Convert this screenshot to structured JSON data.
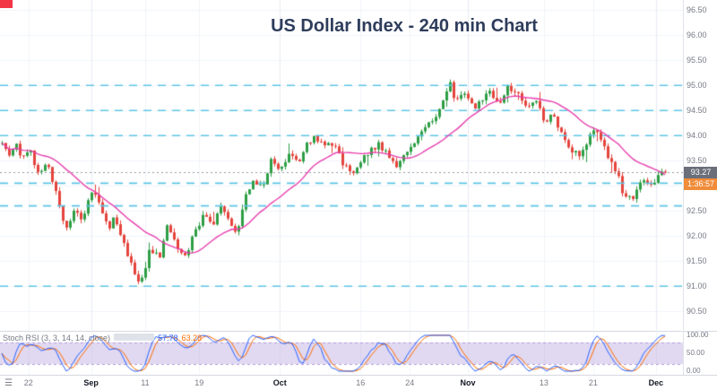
{
  "window": {
    "title": "US Dollar Index - 240 min Chart"
  },
  "price_scale": {
    "labels": [
      "96.50",
      "96.00",
      "95.50",
      "95.00",
      "94.50",
      "94.00",
      "93.50",
      "93.00",
      "92.50",
      "92.00",
      "91.50",
      "91.00",
      "90.50"
    ],
    "price_badge": {
      "text": "93.27",
      "color": "#6a6f7a"
    },
    "countdown_badge": {
      "text": "1:36:57",
      "color": "#f08c3a"
    }
  },
  "time_axis": {
    "menu_icon": "☰",
    "labels": [
      {
        "text": "22",
        "x": 0.04,
        "type": "day"
      },
      {
        "text": "Sep",
        "x": 0.134,
        "type": "month"
      },
      {
        "text": "11",
        "x": 0.215,
        "type": "day"
      },
      {
        "text": "19",
        "x": 0.296,
        "type": "day"
      },
      {
        "text": "Oct",
        "x": 0.417,
        "type": "month"
      },
      {
        "text": "16",
        "x": 0.538,
        "type": "day"
      },
      {
        "text": "24",
        "x": 0.612,
        "type": "day"
      },
      {
        "text": "Nov",
        "x": 0.699,
        "type": "month"
      },
      {
        "text": "13",
        "x": 0.813,
        "type": "day"
      },
      {
        "text": "21",
        "x": 0.887,
        "type": "day"
      },
      {
        "text": "Dec",
        "x": 0.981,
        "type": "month"
      }
    ]
  },
  "indicator": {
    "label": "Stoch RSI (3, 3, 14, 14, close)",
    "k_value": "57.78",
    "d_value": "63.28",
    "k_color": "#2962ff",
    "d_color": "#ff6d00",
    "icons": [
      "eye-icon",
      "gear-icon",
      "source-icon",
      "close-icon",
      "more-icon"
    ],
    "scale_labels": [
      "100.00",
      "50.00",
      "0.00"
    ],
    "band_color": "#b39ddb"
  },
  "chart_data": {
    "type": "candlestick",
    "title": "US Dollar Index - 240 min Chart",
    "interval": "240 min",
    "y_axis": {
      "min": 90.3,
      "max": 96.7,
      "tick": 0.5
    },
    "last_price": 93.27,
    "up_color": "#2e9e45",
    "down_color": "#e4443c",
    "grid": true,
    "sr_line_color": "#5ec5e6",
    "sr_lines": [
      95.0,
      94.5,
      94.0,
      93.05,
      92.6,
      91.0
    ],
    "ma": {
      "period": 20,
      "color": "#e83eae"
    },
    "stoch": {
      "rsi_period": 14,
      "stoch_period": 14,
      "k_smooth": 3,
      "d_smooth": 3
    },
    "candles": {
      "count": 186,
      "seed": 11,
      "body_noise": 0.07,
      "wick_noise": 0.08,
      "wick_spike_chance": 0.06,
      "wick_spike": 0.2
    },
    "price_path": [
      {
        "x": 0.0,
        "p": 93.85
      },
      {
        "x": 0.011,
        "p": 93.6
      },
      {
        "x": 0.02,
        "p": 93.9
      },
      {
        "x": 0.027,
        "p": 93.55
      },
      {
        "x": 0.04,
        "p": 93.75
      },
      {
        "x": 0.054,
        "p": 93.3
      },
      {
        "x": 0.067,
        "p": 93.45
      },
      {
        "x": 0.081,
        "p": 92.9
      },
      {
        "x": 0.094,
        "p": 92.15
      },
      {
        "x": 0.108,
        "p": 92.5
      },
      {
        "x": 0.121,
        "p": 92.35
      },
      {
        "x": 0.134,
        "p": 92.9
      },
      {
        "x": 0.148,
        "p": 92.6
      },
      {
        "x": 0.159,
        "p": 92.15
      },
      {
        "x": 0.168,
        "p": 92.4
      },
      {
        "x": 0.181,
        "p": 91.9
      },
      {
        "x": 0.195,
        "p": 91.4
      },
      {
        "x": 0.208,
        "p": 91.05
      },
      {
        "x": 0.222,
        "p": 91.75
      },
      {
        "x": 0.235,
        "p": 91.55
      },
      {
        "x": 0.249,
        "p": 92.25
      },
      {
        "x": 0.262,
        "p": 91.8
      },
      {
        "x": 0.276,
        "p": 91.55
      },
      {
        "x": 0.289,
        "p": 92.1
      },
      {
        "x": 0.302,
        "p": 92.4
      },
      {
        "x": 0.316,
        "p": 92.25
      },
      {
        "x": 0.329,
        "p": 92.6
      },
      {
        "x": 0.343,
        "p": 92.25
      },
      {
        "x": 0.352,
        "p": 92.1
      },
      {
        "x": 0.363,
        "p": 92.7
      },
      {
        "x": 0.376,
        "p": 93.15
      },
      {
        "x": 0.39,
        "p": 93.0
      },
      {
        "x": 0.403,
        "p": 93.5
      },
      {
        "x": 0.417,
        "p": 93.3
      },
      {
        "x": 0.43,
        "p": 93.65
      },
      {
        "x": 0.444,
        "p": 93.5
      },
      {
        "x": 0.457,
        "p": 93.8
      },
      {
        "x": 0.47,
        "p": 94.0
      },
      {
        "x": 0.484,
        "p": 93.75
      },
      {
        "x": 0.497,
        "p": 93.85
      },
      {
        "x": 0.511,
        "p": 93.4
      },
      {
        "x": 0.524,
        "p": 93.25
      },
      {
        "x": 0.538,
        "p": 93.5
      },
      {
        "x": 0.551,
        "p": 93.7
      },
      {
        "x": 0.565,
        "p": 93.85
      },
      {
        "x": 0.578,
        "p": 93.6
      },
      {
        "x": 0.591,
        "p": 93.35
      },
      {
        "x": 0.605,
        "p": 93.7
      },
      {
        "x": 0.618,
        "p": 93.85
      },
      {
        "x": 0.632,
        "p": 94.15
      },
      {
        "x": 0.645,
        "p": 94.3
      },
      {
        "x": 0.659,
        "p": 94.65
      },
      {
        "x": 0.672,
        "p": 95.0
      },
      {
        "x": 0.679,
        "p": 94.75
      },
      {
        "x": 0.692,
        "p": 94.9
      },
      {
        "x": 0.706,
        "p": 94.55
      },
      {
        "x": 0.719,
        "p": 94.7
      },
      {
        "x": 0.733,
        "p": 94.85
      },
      {
        "x": 0.746,
        "p": 94.6
      },
      {
        "x": 0.759,
        "p": 94.95
      },
      {
        "x": 0.773,
        "p": 94.9
      },
      {
        "x": 0.786,
        "p": 94.6
      },
      {
        "x": 0.8,
        "p": 94.75
      },
      {
        "x": 0.813,
        "p": 94.3
      },
      {
        "x": 0.827,
        "p": 94.45
      },
      {
        "x": 0.84,
        "p": 93.95
      },
      {
        "x": 0.853,
        "p": 93.75
      },
      {
        "x": 0.867,
        "p": 93.6
      },
      {
        "x": 0.88,
        "p": 94.0
      },
      {
        "x": 0.887,
        "p": 94.1
      },
      {
        "x": 0.898,
        "p": 93.9
      },
      {
        "x": 0.907,
        "p": 93.6
      },
      {
        "x": 0.921,
        "p": 93.3
      },
      {
        "x": 0.934,
        "p": 92.75
      },
      {
        "x": 0.948,
        "p": 92.8
      },
      {
        "x": 0.961,
        "p": 93.1
      },
      {
        "x": 0.975,
        "p": 93.05
      },
      {
        "x": 0.988,
        "p": 93.27
      }
    ]
  }
}
